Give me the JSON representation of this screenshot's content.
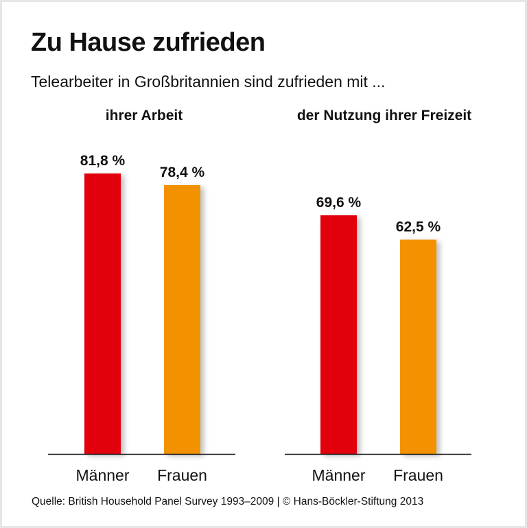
{
  "chart_data": {
    "type": "bar",
    "title": "Zu Hause zufrieden",
    "subtitle": "Telearbeiter in Großbritannien sind zufrieden mit ...",
    "source": "Quelle: British Household Panel Survey 1993–2009 | © Hans-Böckler-Stiftung 2013",
    "ylim": [
      0,
      100
    ],
    "unit": "%",
    "groups": [
      {
        "title": "ihrer Arbeit",
        "categories": [
          "Männer",
          "Frauen"
        ],
        "values": [
          81.8,
          78.4
        ],
        "labels": [
          "81,8 %",
          "78,4 %"
        ]
      },
      {
        "title": "der Nutzung ihrer Freizeit",
        "categories": [
          "Männer",
          "Frauen"
        ],
        "values": [
          69.6,
          62.5
        ],
        "labels": [
          "69,6 %",
          "62,5 %"
        ]
      }
    ],
    "colors": [
      "#e2000f",
      "#f39200"
    ]
  }
}
